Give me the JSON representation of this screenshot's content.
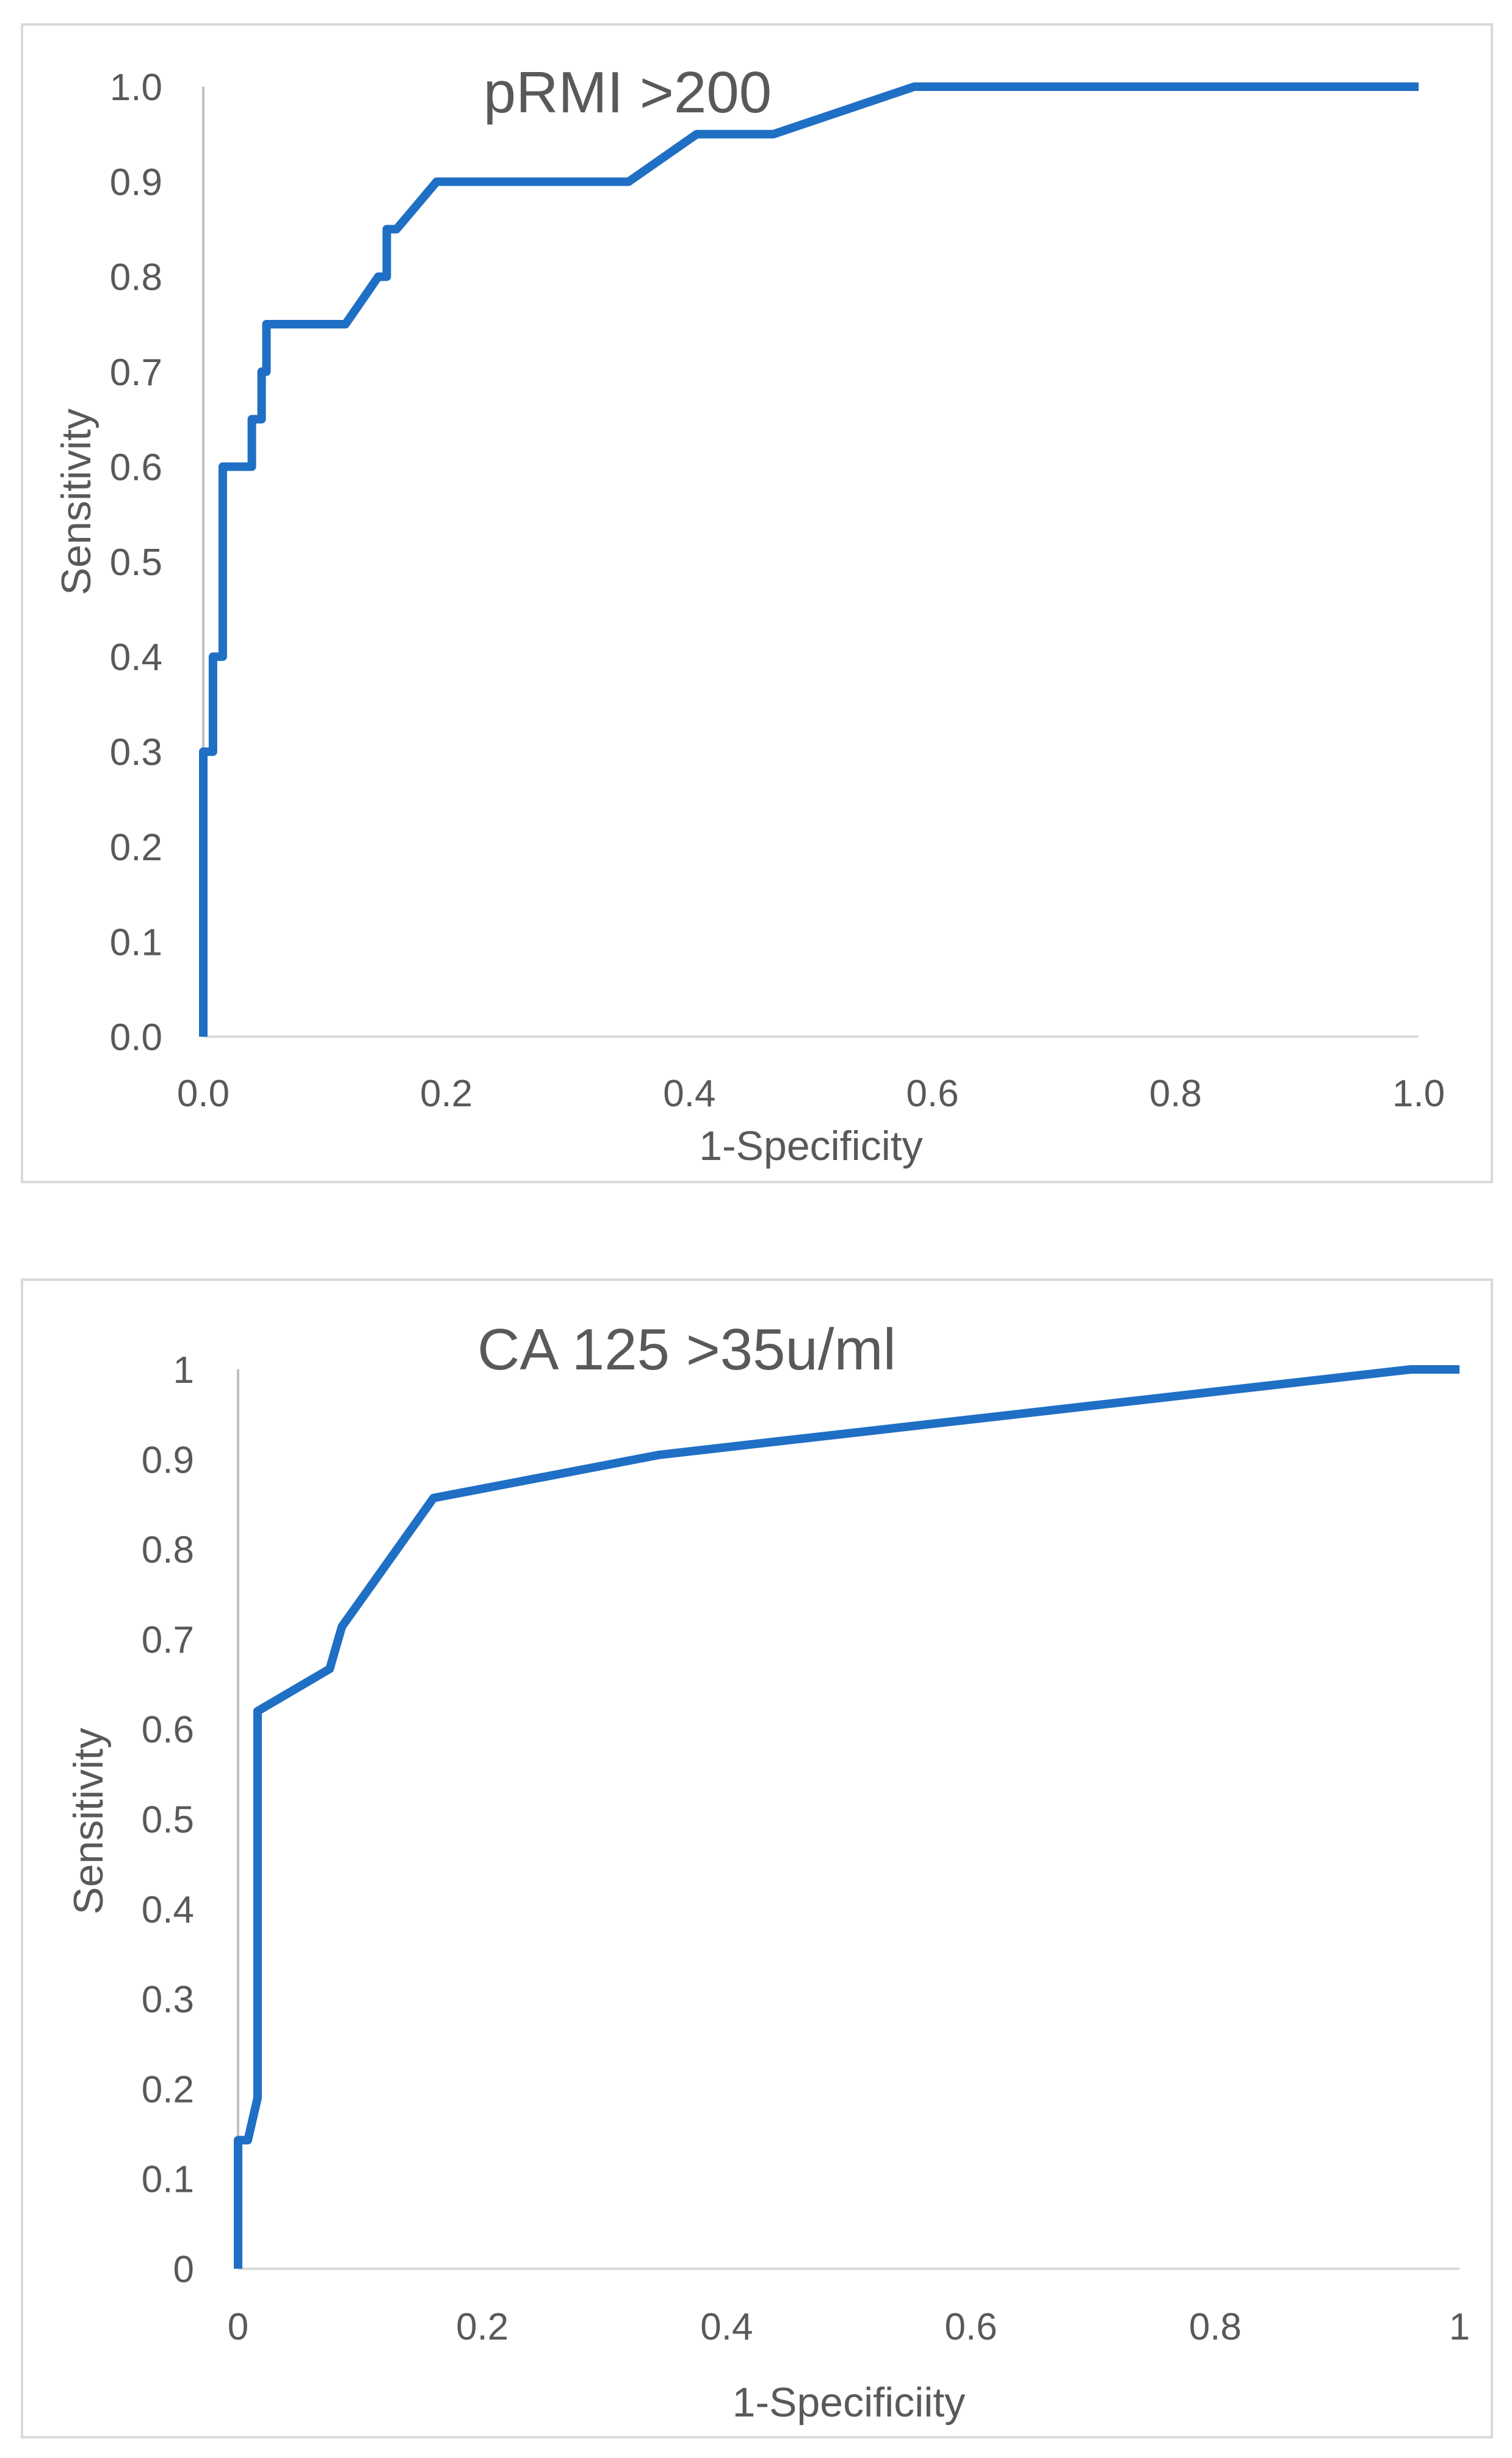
{
  "chart_data": [
    {
      "type": "line",
      "title": "pRMI >200",
      "xlabel": "1-Specificity",
      "ylabel": "Sensitivity",
      "xlim": [
        0,
        1
      ],
      "ylim": [
        0,
        1
      ],
      "x_ticks": [
        "0.0",
        "0.2",
        "0.4",
        "0.6",
        "0.8",
        "1.0"
      ],
      "y_ticks": [
        "0.0",
        "0.1",
        "0.2",
        "0.3",
        "0.4",
        "0.5",
        "0.6",
        "0.7",
        "0.8",
        "0.9",
        "1.0"
      ],
      "grid": false,
      "line_color": "#1f6fc5",
      "series": [
        {
          "x": [
            0,
            0,
            0.008,
            0.008,
            0.016,
            0.016,
            0.04,
            0.04,
            0.048,
            0.048,
            0.052,
            0.052,
            0.117,
            0.144,
            0.151,
            0.151,
            0.159,
            0.192,
            0.35,
            0.406,
            0.469,
            0.585,
            1.0
          ],
          "y": [
            0,
            0.3,
            0.3,
            0.4,
            0.4,
            0.6,
            0.6,
            0.65,
            0.65,
            0.7,
            0.7,
            0.75,
            0.75,
            0.8,
            0.8,
            0.85,
            0.85,
            0.9,
            0.9,
            0.95,
            0.95,
            1.0,
            1.0
          ]
        }
      ]
    },
    {
      "type": "line",
      "title": "CA 125 >35u/ml",
      "xlabel": "1-Specificiity",
      "ylabel": "Sensitivity",
      "xlim": [
        0,
        1
      ],
      "ylim": [
        0,
        1
      ],
      "x_ticks": [
        "0",
        "0.2",
        "0.4",
        "0.6",
        "0.8",
        "1"
      ],
      "y_ticks": [
        "0",
        "0.1",
        "0.2",
        "0.3",
        "0.4",
        "0.5",
        "0.6",
        "0.7",
        "0.8",
        "0.9",
        "1"
      ],
      "grid": false,
      "line_color": "#1f6fc5",
      "series": [
        {
          "x": [
            0,
            0,
            0.008,
            0.016,
            0.016,
            0.075,
            0.085,
            0.16,
            0.345,
            0.96,
            1.0
          ],
          "y": [
            0,
            0.143,
            0.143,
            0.19,
            0.62,
            0.667,
            0.714,
            0.857,
            0.905,
            1.0,
            1.0
          ]
        }
      ]
    }
  ]
}
